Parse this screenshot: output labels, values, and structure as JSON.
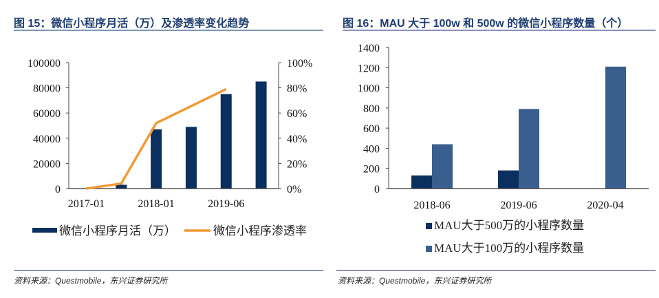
{
  "left": {
    "title": "图 15：微信小程序月活（万）及渗透率变化趋势",
    "source": "资料来源：Questmobile，东兴证券研究所"
  },
  "right": {
    "title": "图 16：MAU 大于 100w 和 500w 的微信小程序数量（个）",
    "source": "资料来源：Questmobile，东兴证券研究所"
  },
  "colors": {
    "navy": "#0b2f5f",
    "steel": "#3a5f8e",
    "orange": "#f29a34",
    "title": "#1f3d6e"
  },
  "chart_data": [
    {
      "type": "bar",
      "title": "图 15：微信小程序月活（万）及渗透率变化趋势",
      "categories": [
        "2017-01",
        "",
        "2018-01",
        "",
        "2019-06",
        ""
      ],
      "x_tick_labels": [
        "2017-01",
        "2018-01",
        "2019-06"
      ],
      "series": [
        {
          "name": "微信小程序月活（万）",
          "type": "bar",
          "axis": "left",
          "values": [
            0,
            3000,
            47000,
            49000,
            75000,
            85000
          ]
        },
        {
          "name": "微信小程序渗透率",
          "type": "line",
          "axis": "right",
          "values": [
            0.0,
            0.04,
            0.52,
            null,
            0.79,
            null
          ]
        }
      ],
      "y_left": {
        "range": [
          0,
          100000
        ],
        "ticks": [
          "0",
          "20000",
          "40000",
          "60000",
          "80000",
          "100000"
        ]
      },
      "y_right": {
        "range": [
          0,
          1
        ],
        "ticks": [
          "0%",
          "20%",
          "40%",
          "60%",
          "80%",
          "100%"
        ]
      },
      "legend": {
        "position": "bottom",
        "entries": [
          "微信小程序月活（万）",
          "微信小程序渗透率"
        ]
      },
      "grid": false
    },
    {
      "type": "bar",
      "title": "图 16：MAU 大于 100w 和 500w 的微信小程序数量（个）",
      "categories": [
        "2018-06",
        "2019-06",
        "2020-04"
      ],
      "series": [
        {
          "name": "MAU大于500万的小程序数量",
          "values": [
            130,
            180,
            0
          ]
        },
        {
          "name": "MAU大于100万的小程序数量",
          "values": [
            440,
            790,
            1210
          ]
        }
      ],
      "y": {
        "range": [
          0,
          1400
        ],
        "ticks": [
          "0",
          "200",
          "400",
          "600",
          "800",
          "1000",
          "1200",
          "1400"
        ]
      },
      "legend": {
        "position": "bottom",
        "entries": [
          "MAU大于500万的小程序数量",
          "MAU大于100万的小程序数量"
        ]
      },
      "grid": false
    }
  ]
}
